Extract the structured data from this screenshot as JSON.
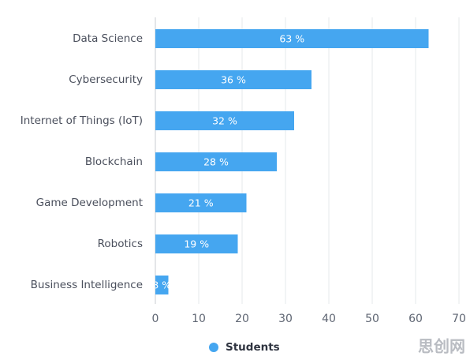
{
  "chart_data": {
    "type": "hbar",
    "categories": [
      "Data Science",
      "Cybersecurity",
      "Internet of Things (IoT)",
      "Blockchain",
      "Game Development",
      "Robotics",
      "Business Intelligence"
    ],
    "series": [
      {
        "name": "Students",
        "color": "#45a6f0",
        "values": [
          63,
          36,
          32,
          28,
          21,
          19,
          3
        ],
        "value_labels": [
          "63 %",
          "36 %",
          "32 %",
          "28 %",
          "21 %",
          "19 %",
          "3 %"
        ]
      }
    ],
    "xlim": [
      0,
      70
    ],
    "xticks": [
      0,
      10,
      20,
      30,
      40,
      50,
      60,
      70
    ],
    "grid": true,
    "legend": "bottom"
  },
  "watermark": "思创网"
}
